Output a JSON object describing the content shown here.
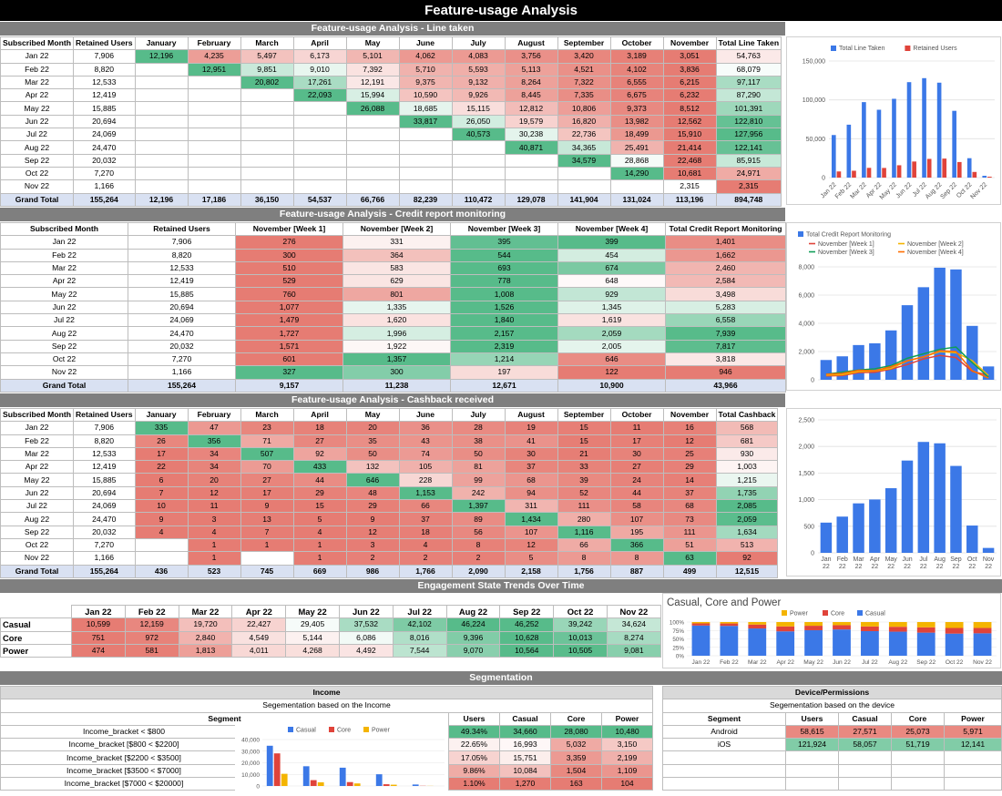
{
  "page_title": "Feature-usage Analysis",
  "colors": {
    "blue": "#3b78e7",
    "red": "#e0433a",
    "yellow": "#f4b400",
    "green": "#0f9d58",
    "orange": "#ff6d00",
    "header_gray": "#7f7f7f",
    "title_black": "#000000"
  },
  "line_taken": {
    "title": "Feature-usage Analysis - Line taken",
    "headers": [
      "Subscribed Month",
      "Retained Users",
      "January",
      "February",
      "March",
      "April",
      "May",
      "June",
      "July",
      "August",
      "September",
      "October",
      "November",
      "Total Line Taken"
    ],
    "rows": [
      [
        "Jan 22",
        "7,906",
        "12,196",
        "4,235",
        "5,497",
        "6,173",
        "5,101",
        "4,062",
        "4,083",
        "3,756",
        "3,420",
        "3,189",
        "3,051",
        "54,763"
      ],
      [
        "Feb 22",
        "8,820",
        "",
        "12,951",
        "9,851",
        "9,010",
        "7,392",
        "5,710",
        "5,593",
        "5,113",
        "4,521",
        "4,102",
        "3,836",
        "68,079"
      ],
      [
        "Mar 22",
        "12,533",
        "",
        "",
        "20,802",
        "17,261",
        "12,191",
        "9,375",
        "9,132",
        "8,264",
        "7,322",
        "6,555",
        "6,215",
        "97,117"
      ],
      [
        "Apr 22",
        "12,419",
        "",
        "",
        "",
        "22,093",
        "15,994",
        "10,590",
        "9,926",
        "8,445",
        "7,335",
        "6,675",
        "6,232",
        "87,290"
      ],
      [
        "May 22",
        "15,885",
        "",
        "",
        "",
        "",
        "26,088",
        "18,685",
        "15,115",
        "12,812",
        "10,806",
        "9,373",
        "8,512",
        "101,391"
      ],
      [
        "Jun 22",
        "20,694",
        "",
        "",
        "",
        "",
        "",
        "33,817",
        "26,050",
        "19,579",
        "16,820",
        "13,982",
        "12,562",
        "122,810"
      ],
      [
        "Jul 22",
        "24,069",
        "",
        "",
        "",
        "",
        "",
        "",
        "40,573",
        "30,238",
        "22,736",
        "18,499",
        "15,910",
        "127,956"
      ],
      [
        "Aug 22",
        "24,470",
        "",
        "",
        "",
        "",
        "",
        "",
        "",
        "40,871",
        "34,365",
        "25,491",
        "21,414",
        "122,141"
      ],
      [
        "Sep 22",
        "20,032",
        "",
        "",
        "",
        "",
        "",
        "",
        "",
        "",
        "34,579",
        "28,868",
        "22,468",
        "85,915"
      ],
      [
        "Oct 22",
        "7,270",
        "",
        "",
        "",
        "",
        "",
        "",
        "",
        "",
        "",
        "14,290",
        "10,681",
        "24,971"
      ],
      [
        "Nov 22",
        "1,166",
        "",
        "",
        "",
        "",
        "",
        "",
        "",
        "",
        "",
        "",
        "2,315",
        "2,315"
      ]
    ],
    "total": [
      "Grand Total",
      "155,264",
      "12,196",
      "17,186",
      "36,150",
      "54,537",
      "66,766",
      "82,239",
      "110,472",
      "129,078",
      "141,904",
      "131,024",
      "113,196",
      "894,748"
    ]
  },
  "credit_report": {
    "title": "Feature-usage Analysis - Credit report monitoring",
    "headers": [
      "Subscribed Month",
      "Retained Users",
      "November [Week 1]",
      "November [Week 2]",
      "November [Week 3]",
      "November [Week 4]",
      "Total Credit Report Monitoring"
    ],
    "rows": [
      [
        "Jan 22",
        "7,906",
        "276",
        "331",
        "395",
        "399",
        "1,401"
      ],
      [
        "Feb 22",
        "8,820",
        "300",
        "364",
        "544",
        "454",
        "1,662"
      ],
      [
        "Mar 22",
        "12,533",
        "510",
        "583",
        "693",
        "674",
        "2,460"
      ],
      [
        "Apr 22",
        "12,419",
        "529",
        "629",
        "778",
        "648",
        "2,584"
      ],
      [
        "May 22",
        "15,885",
        "760",
        "801",
        "1,008",
        "929",
        "3,498"
      ],
      [
        "Jun 22",
        "20,694",
        "1,077",
        "1,335",
        "1,526",
        "1,345",
        "5,283"
      ],
      [
        "Jul 22",
        "24,069",
        "1,479",
        "1,620",
        "1,840",
        "1,619",
        "6,558"
      ],
      [
        "Aug 22",
        "24,470",
        "1,727",
        "1,996",
        "2,157",
        "2,059",
        "7,939"
      ],
      [
        "Sep 22",
        "20,032",
        "1,571",
        "1,922",
        "2,319",
        "2,005",
        "7,817"
      ],
      [
        "Oct 22",
        "7,270",
        "601",
        "1,357",
        "1,214",
        "646",
        "3,818"
      ],
      [
        "Nov 22",
        "1,166",
        "327",
        "300",
        "197",
        "122",
        "946"
      ]
    ],
    "total": [
      "Grand Total",
      "155,264",
      "9,157",
      "11,238",
      "12,671",
      "10,900",
      "43,966"
    ]
  },
  "cashback": {
    "title": "Feature-usage Analysis - Cashback received",
    "headers": [
      "Subscribed Month",
      "Retained Users",
      "January",
      "February",
      "March",
      "April",
      "May",
      "June",
      "July",
      "August",
      "September",
      "October",
      "November",
      "Total Cashback"
    ],
    "rows": [
      [
        "Jan 22",
        "7,906",
        "335",
        "47",
        "23",
        "18",
        "20",
        "36",
        "28",
        "19",
        "15",
        "11",
        "16",
        "568"
      ],
      [
        "Feb 22",
        "8,820",
        "26",
        "356",
        "71",
        "27",
        "35",
        "43",
        "38",
        "41",
        "15",
        "17",
        "12",
        "681"
      ],
      [
        "Mar 22",
        "12,533",
        "17",
        "34",
        "507",
        "92",
        "50",
        "74",
        "50",
        "30",
        "21",
        "30",
        "25",
        "930"
      ],
      [
        "Apr 22",
        "12,419",
        "22",
        "34",
        "70",
        "433",
        "132",
        "105",
        "81",
        "37",
        "33",
        "27",
        "29",
        "1,003"
      ],
      [
        "May 22",
        "15,885",
        "6",
        "20",
        "27",
        "44",
        "646",
        "228",
        "99",
        "68",
        "39",
        "24",
        "14",
        "1,215"
      ],
      [
        "Jun 22",
        "20,694",
        "7",
        "12",
        "17",
        "29",
        "48",
        "1,153",
        "242",
        "94",
        "52",
        "44",
        "37",
        "1,735"
      ],
      [
        "Jul 22",
        "24,069",
        "10",
        "11",
        "9",
        "15",
        "29",
        "66",
        "1,397",
        "311",
        "111",
        "58",
        "68",
        "2,085"
      ],
      [
        "Aug 22",
        "24,470",
        "9",
        "3",
        "13",
        "5",
        "9",
        "37",
        "89",
        "1,434",
        "280",
        "107",
        "73",
        "2,059"
      ],
      [
        "Sep 22",
        "20,032",
        "4",
        "4",
        "7",
        "4",
        "12",
        "18",
        "56",
        "107",
        "1,116",
        "195",
        "111",
        "1,634"
      ],
      [
        "Oct 22",
        "7,270",
        "",
        "1",
        "1",
        "1",
        "3",
        "4",
        "8",
        "12",
        "66",
        "366",
        "51",
        "513"
      ],
      [
        "Nov 22",
        "1,166",
        "",
        "1",
        "",
        "1",
        "2",
        "2",
        "2",
        "5",
        "8",
        "8",
        "63",
        "92"
      ]
    ],
    "total": [
      "Grand Total",
      "155,264",
      "436",
      "523",
      "745",
      "669",
      "986",
      "1,766",
      "2,090",
      "2,158",
      "1,756",
      "887",
      "499",
      "12,515"
    ]
  },
  "engagement": {
    "title": "Engagement State Trends Over Time",
    "months": [
      "Jan 22",
      "Feb 22",
      "Mar 22",
      "Apr 22",
      "May 22",
      "Jun 22",
      "Jul 22",
      "Aug 22",
      "Sep 22",
      "Oct 22",
      "Nov 22"
    ],
    "rows": [
      {
        "label": "Casual",
        "values": [
          "10,599",
          "12,159",
          "19,720",
          "22,427",
          "29,405",
          "37,532",
          "42,102",
          "46,224",
          "46,252",
          "39,242",
          "34,624"
        ]
      },
      {
        "label": "Core",
        "values": [
          "751",
          "972",
          "2,840",
          "4,549",
          "5,144",
          "6,086",
          "8,016",
          "9,396",
          "10,628",
          "10,013",
          "8,274"
        ]
      },
      {
        "label": "Power",
        "values": [
          "474",
          "581",
          "1,813",
          "4,011",
          "4,268",
          "4,492",
          "7,544",
          "9,070",
          "10,564",
          "10,505",
          "9,081"
        ]
      }
    ]
  },
  "segmentation": {
    "title": "Segmentation",
    "income": {
      "title": "Income",
      "subtitle": "Segementation based on the Income",
      "segment_header": "Segment",
      "headers": [
        "Users",
        "Casual",
        "Core",
        "Power"
      ],
      "rows": [
        {
          "segment": "Income_bracket < $800",
          "values": [
            "49.34%",
            "34,660",
            "28,080",
            "10,480"
          ]
        },
        {
          "segment": "Income_bracket [$800 < $2200]",
          "values": [
            "22.65%",
            "16,993",
            "5,032",
            "3,150"
          ]
        },
        {
          "segment": "Income_bracket [$2200 < $3500]",
          "values": [
            "17.05%",
            "15,751",
            "3,359",
            "2,199"
          ]
        },
        {
          "segment": "Income_bracket [$3500 < $7000]",
          "values": [
            "9.86%",
            "10,084",
            "1,504",
            "1,109"
          ]
        },
        {
          "segment": "Income_bracket [$7000 < $20000]",
          "values": [
            "1.10%",
            "1,270",
            "163",
            "104"
          ]
        }
      ]
    },
    "device": {
      "title": "Device/Permissions",
      "subtitle": "Segementation based on the device",
      "headers": [
        "Segment",
        "Users",
        "Casual",
        "Core",
        "Power"
      ],
      "rows": [
        [
          "Android",
          "58,615",
          "27,571",
          "25,073",
          "5,971"
        ],
        [
          "iOS",
          "121,924",
          "58,057",
          "51,719",
          "12,141"
        ]
      ]
    }
  },
  "chart_data": [
    {
      "type": "bar",
      "categories": [
        "Jan 22",
        "Feb 22",
        "Mar 22",
        "Apr 22",
        "May 22",
        "Jun 22",
        "Jul 22",
        "Aug 22",
        "Sep 22",
        "Oct 22",
        "Nov 22"
      ],
      "series": [
        {
          "name": "Total Line Taken",
          "values": [
            54763,
            68079,
            97117,
            87290,
            101391,
            122810,
            127956,
            122141,
            85915,
            24971,
            2315
          ]
        },
        {
          "name": "Retained Users",
          "values": [
            7906,
            8820,
            12533,
            12419,
            15885,
            20694,
            24069,
            24470,
            20032,
            7270,
            1166
          ]
        }
      ],
      "yticks": [
        "0",
        "50,000",
        "100,000",
        "150,000"
      ],
      "ylim": [
        0,
        150000
      ],
      "legend": "top"
    },
    {
      "type": "bar",
      "categories": [
        "Jan 22",
        "Feb 22",
        "Mar 22",
        "Apr 22",
        "May 22",
        "Jun 22",
        "Jul 22",
        "Aug 22",
        "Sep 22",
        "Oct 22",
        "Nov 22"
      ],
      "series": [
        {
          "name": "Total Credit Report Monitoring",
          "values": [
            1401,
            1662,
            2460,
            2584,
            3498,
            5283,
            6558,
            7939,
            7817,
            3818,
            946
          ]
        },
        {
          "name": "November [Week 1]",
          "values": [
            276,
            300,
            510,
            529,
            760,
            1077,
            1479,
            1727,
            1571,
            601,
            327
          ]
        },
        {
          "name": "November [Week 2]",
          "values": [
            331,
            364,
            583,
            629,
            801,
            1335,
            1620,
            1996,
            1922,
            1357,
            300
          ]
        },
        {
          "name": "November [Week 3]",
          "values": [
            395,
            544,
            693,
            778,
            1008,
            1526,
            1840,
            2157,
            2319,
            1214,
            197
          ]
        },
        {
          "name": "November [Week 4]",
          "values": [
            399,
            454,
            674,
            648,
            929,
            1345,
            1619,
            2059,
            2005,
            646,
            122
          ]
        }
      ],
      "yticks": [
        "0",
        "2,000",
        "4,000",
        "6,000",
        "8,000"
      ],
      "ylim": [
        0,
        8000
      ],
      "legend": "top"
    },
    {
      "type": "bar",
      "categories": [
        "Jan 22",
        "Feb 22",
        "Mar 22",
        "Apr 22",
        "May 22",
        "Jun 22",
        "Jul 22",
        "Aug 22",
        "Sep 22",
        "Oct 22",
        "Nov 22"
      ],
      "series": [
        {
          "name": "Total Cashback",
          "values": [
            568,
            681,
            930,
            1003,
            1215,
            1735,
            2085,
            2059,
            1634,
            513,
            92
          ]
        }
      ],
      "yticks": [
        "0",
        "500",
        "1,000",
        "1,500",
        "2,000",
        "2,500"
      ],
      "ylim": [
        0,
        2500
      ]
    },
    {
      "type": "bar",
      "title": "Casual, Core and Power",
      "categories": [
        "Jan 22",
        "Feb 22",
        "Mar 22",
        "Apr 22",
        "May 22",
        "Jun 22",
        "Jul 22",
        "Aug 22",
        "Sep 22",
        "Oct 22",
        "Nov 22"
      ],
      "series": [
        {
          "name": "Casual",
          "values": [
            10599,
            12159,
            19720,
            22427,
            29405,
            37532,
            42102,
            46224,
            46252,
            39242,
            34624
          ]
        },
        {
          "name": "Core",
          "values": [
            751,
            972,
            2840,
            4549,
            5144,
            6086,
            8016,
            9396,
            10628,
            10013,
            8274
          ]
        },
        {
          "name": "Power",
          "values": [
            474,
            581,
            1813,
            4011,
            4268,
            4492,
            7544,
            9070,
            10564,
            10505,
            9081
          ]
        }
      ],
      "stacked_percent": true,
      "yticks": [
        "0%",
        "25%",
        "50%",
        "75%",
        "100%"
      ],
      "legend": "top"
    },
    {
      "type": "bar",
      "categories": [
        "Income_bracket < $800",
        "Income_bracket [$800 < $2200]",
        "Income_bracket [$2200 < $3500]",
        "Income_bracket [$3500 < $7000]",
        "Income_bracket [$7000 < $20000]"
      ],
      "series": [
        {
          "name": "Casual",
          "values": [
            34660,
            16993,
            15751,
            10084,
            1270
          ]
        },
        {
          "name": "Core",
          "values": [
            28080,
            5032,
            3359,
            1504,
            163
          ]
        },
        {
          "name": "Power",
          "values": [
            10480,
            3150,
            2199,
            1109,
            104
          ]
        }
      ],
      "yticks": [
        "0",
        "10,000",
        "20,000",
        "30,000",
        "40,000"
      ],
      "ylim": [
        0,
        40000
      ],
      "legend": "top"
    }
  ]
}
